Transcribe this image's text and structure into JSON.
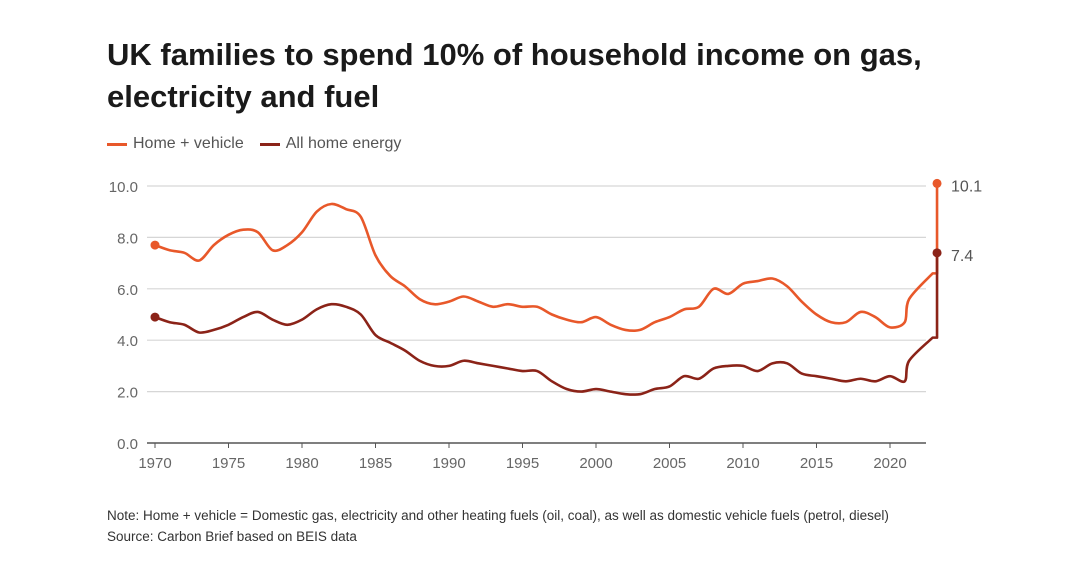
{
  "chart_data": {
    "type": "line",
    "title": "UK families to spend 10% of household income on gas, electricity and fuel",
    "xlabel": "",
    "ylabel": "",
    "ylim": [
      0,
      10
    ],
    "xlim": [
      1970,
      2023.5
    ],
    "yticks": [
      "0.0",
      "2.0",
      "4.0",
      "6.0",
      "8.0",
      "10.0"
    ],
    "ytick_values": [
      0,
      2,
      4,
      6,
      8,
      10
    ],
    "xticks": [
      "1970",
      "1975",
      "1980",
      "1985",
      "1990",
      "1995",
      "2000",
      "2005",
      "2010",
      "2015",
      "2020"
    ],
    "xtick_values": [
      1970,
      1975,
      1980,
      1985,
      1990,
      1995,
      2000,
      2005,
      2010,
      2015,
      2020
    ],
    "grid": true,
    "legend_placement": "top-left",
    "series": [
      {
        "name": "Home + vehicle",
        "color": "#e8582a",
        "end_label": "10.1",
        "x": [
          1970,
          1971,
          1972,
          1973,
          1974,
          1975,
          1976,
          1977,
          1978,
          1979,
          1980,
          1981,
          1982,
          1983,
          1984,
          1985,
          1986,
          1987,
          1988,
          1989,
          1990,
          1991,
          1992,
          1993,
          1994,
          1995,
          1996,
          1997,
          1998,
          1999,
          2000,
          2001,
          2002,
          2003,
          2004,
          2005,
          2006,
          2007,
          2008,
          2009,
          2010,
          2011,
          2012,
          2013,
          2014,
          2015,
          2016,
          2017,
          2018,
          2019,
          2020,
          2021,
          2021.3,
          2022.9,
          2023.2
        ],
        "y": [
          7.7,
          7.5,
          7.4,
          7.1,
          7.7,
          8.1,
          8.3,
          8.2,
          7.5,
          7.7,
          8.2,
          9.0,
          9.3,
          9.1,
          8.8,
          7.3,
          6.5,
          6.1,
          5.6,
          5.4,
          5.5,
          5.7,
          5.5,
          5.3,
          5.4,
          5.3,
          5.3,
          5.0,
          4.8,
          4.7,
          4.9,
          4.6,
          4.4,
          4.4,
          4.7,
          4.9,
          5.2,
          5.3,
          6.0,
          5.8,
          6.2,
          6.3,
          6.4,
          6.1,
          5.5,
          5.0,
          4.7,
          4.7,
          5.1,
          4.9,
          4.5,
          4.7,
          5.6,
          6.6,
          10.1
        ]
      },
      {
        "name": "All home energy",
        "color": "#8b2318",
        "end_label": "7.4",
        "x": [
          1970,
          1971,
          1972,
          1973,
          1974,
          1975,
          1976,
          1977,
          1978,
          1979,
          1980,
          1981,
          1982,
          1983,
          1984,
          1985,
          1986,
          1987,
          1988,
          1989,
          1990,
          1991,
          1992,
          1993,
          1994,
          1995,
          1996,
          1997,
          1998,
          1999,
          2000,
          2001,
          2002,
          2003,
          2004,
          2005,
          2006,
          2007,
          2008,
          2009,
          2010,
          2011,
          2012,
          2013,
          2014,
          2015,
          2016,
          2017,
          2018,
          2019,
          2020,
          2021,
          2021.3,
          2022.9,
          2023.2
        ],
        "y": [
          4.9,
          4.7,
          4.6,
          4.3,
          4.4,
          4.6,
          4.9,
          5.1,
          4.8,
          4.6,
          4.8,
          5.2,
          5.4,
          5.3,
          5.0,
          4.2,
          3.9,
          3.6,
          3.2,
          3.0,
          3.0,
          3.2,
          3.1,
          3.0,
          2.9,
          2.8,
          2.8,
          2.4,
          2.1,
          2.0,
          2.1,
          2.0,
          1.9,
          1.9,
          2.1,
          2.2,
          2.6,
          2.5,
          2.9,
          3.0,
          3.0,
          2.8,
          3.1,
          3.1,
          2.7,
          2.6,
          2.5,
          2.4,
          2.5,
          2.4,
          2.6,
          2.4,
          3.2,
          4.1,
          7.4
        ]
      }
    ]
  },
  "note": "Note: Home + vehicle = Domestic gas, electricity and other heating fuels (oil, coal), as well as domestic vehicle fuels (petrol, diesel)",
  "source": "Source: Carbon Brief based on BEIS data"
}
